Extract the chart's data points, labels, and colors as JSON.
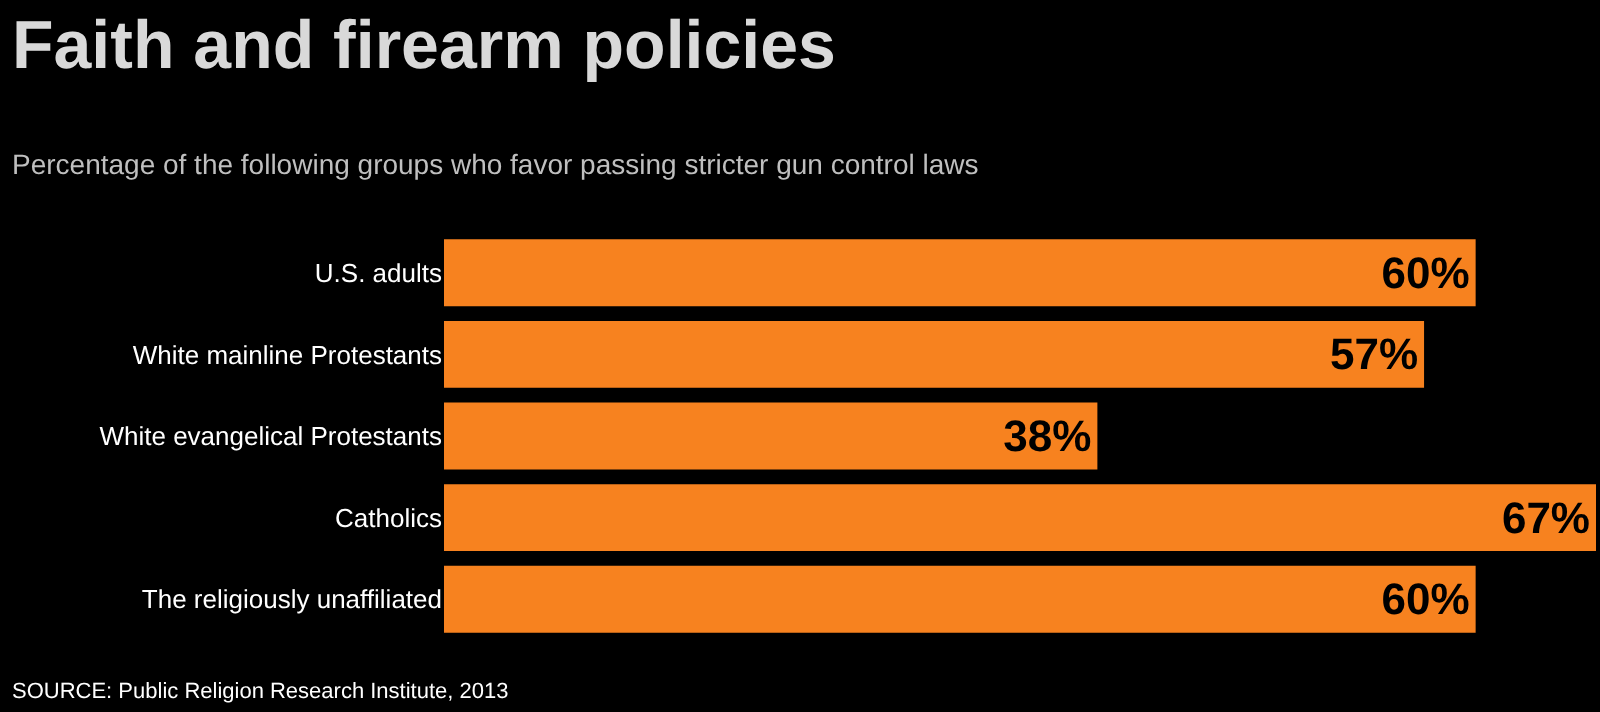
{
  "chart_data": {
    "type": "bar",
    "orientation": "horizontal",
    "title": "Faith and firearm policies",
    "subtitle": "Percentage of the following groups who favor passing stricter gun control laws",
    "categories": [
      "U.S. adults",
      "White mainline Protestants",
      "White evangelical Protestants",
      "Catholics",
      "The religiously unaffiliated"
    ],
    "values": [
      60,
      57,
      38,
      67,
      60
    ],
    "value_labels": [
      "60%",
      "57%",
      "38%",
      "67%",
      "60%"
    ],
    "color": "#f7821f",
    "annotations": [
      "SOURCE: Public Religion Research Institute, 2013"
    ]
  }
}
